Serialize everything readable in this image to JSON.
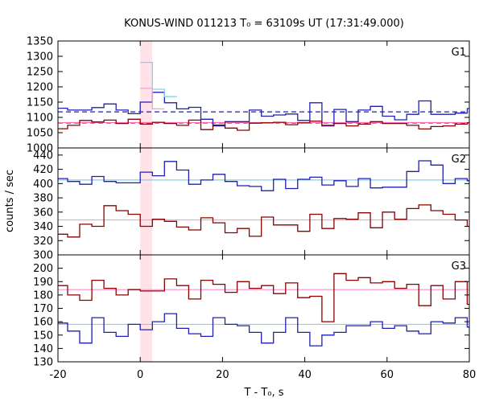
{
  "chart_data": {
    "type": "line",
    "title": "KONUS-WIND 011213 T₀ = 63109s UT (17:31:49.000)",
    "xlabel": "T - T₀, s",
    "ylabel": "counts / sec",
    "xlim": [
      -20,
      80
    ],
    "x_ticks": [
      "-20",
      "0",
      "20",
      "40",
      "60",
      "80"
    ],
    "x_tick_values": [
      -20,
      0,
      20,
      40,
      60,
      80
    ],
    "highlight_interval": [
      0,
      2.9
    ],
    "bin_width": 2.944,
    "bin_start": -20.6,
    "panels": [
      {
        "label": "G1",
        "ylim": [
          1000,
          1350
        ],
        "y_ticks": [
          1000,
          1050,
          1100,
          1150,
          1200,
          1250,
          1300,
          1350
        ],
        "series": [
          {
            "color": "#1f1fb4",
            "style": "step",
            "values": [
              1130,
              1124,
              1124,
              1132,
              1144,
              1124,
              1112,
              1150,
              1182,
              1148,
              1128,
              1133,
              1094,
              1072,
              1086,
              1086,
              1124,
              1104,
              1108,
              1111,
              1090,
              1148,
              1072,
              1126,
              1086,
              1124,
              1136,
              1104,
              1092,
              1110,
              1154,
              1110,
              1110,
              1114,
              1129,
              1170,
              1162,
              1152,
              1148,
              1134
            ]
          },
          {
            "color": "#8b0000",
            "style": "step",
            "values": [
              1063,
              1074,
              1090,
              1085,
              1091,
              1080,
              1094,
              1078,
              1084,
              1080,
              1074,
              1091,
              1060,
              1075,
              1065,
              1058,
              1081,
              1082,
              1084,
              1076,
              1082,
              1088,
              1074,
              1080,
              1072,
              1078,
              1086,
              1080,
              1080,
              1074,
              1062,
              1070,
              1072,
              1078,
              1082,
              1091,
              1085,
              1072,
              1078,
              1084
            ]
          },
          {
            "color": "#87ceeb",
            "style": "step",
            "values": [
              null,
              null,
              null,
              null,
              null,
              null,
              null,
              1280,
              1192,
              1168,
              null,
              null,
              null,
              null,
              null,
              null,
              null,
              null,
              null,
              null,
              null,
              null,
              null,
              null,
              null,
              null,
              null,
              null,
              null,
              null,
              null,
              null,
              null,
              null,
              null,
              null,
              null,
              null,
              null,
              null
            ]
          },
          {
            "color": "#ff9ccf",
            "style": "step",
            "values": [
              null,
              null,
              null,
              null,
              null,
              null,
              null,
              1195,
              1128,
              null,
              null,
              null,
              null,
              null,
              null,
              null,
              null,
              null,
              null,
              null,
              null,
              null,
              null,
              null,
              null,
              null,
              null,
              null,
              null,
              null,
              null,
              null,
              null,
              null,
              null,
              null,
              null,
              null,
              null,
              null
            ]
          }
        ],
        "hlines": [
          {
            "value": 1118,
            "color": "#1f1fb4",
            "dashed": true
          },
          {
            "value": 1082,
            "color": "#8b0000",
            "dashed": true
          },
          {
            "value": 1083,
            "color": "#ff69b4",
            "dashed": false
          }
        ]
      },
      {
        "label": "G2",
        "ylim": [
          300,
          450
        ],
        "y_ticks": [
          300,
          320,
          340,
          360,
          380,
          400,
          420,
          440
        ],
        "series": [
          {
            "color": "#1f1fb4",
            "style": "step",
            "values": [
              407,
              403,
              399,
              410,
              403,
              401,
              401,
              416,
              411,
              431,
              419,
              399,
              405,
              413,
              403,
              397,
              396,
              390,
              406,
              393,
              406,
              409,
              398,
              404,
              396,
              407,
              394,
              395,
              395,
              417,
              432,
              426,
              400,
              407,
              404,
              405,
              401,
              403,
              397,
              403
            ]
          },
          {
            "color": "#8b0000",
            "style": "step",
            "values": [
              329,
              325,
              343,
              340,
              369,
              362,
              357,
              340,
              350,
              347,
              339,
              335,
              352,
              345,
              331,
              337,
              326,
              353,
              342,
              342,
              333,
              357,
              337,
              351,
              350,
              359,
              338,
              360,
              350,
              365,
              370,
              362,
              357,
              349,
              340,
              367,
              345,
              346,
              340,
              347
            ]
          }
        ],
        "hlines": [
          {
            "value": 405,
            "color": "#87ceeb",
            "dashed": false
          },
          {
            "value": 349,
            "color": "#ff9ccf",
            "dashed": false
          }
        ]
      },
      {
        "label": "G3",
        "ylim": [
          130,
          210
        ],
        "y_ticks": [
          130,
          140,
          150,
          160,
          170,
          180,
          190,
          200
        ],
        "series": [
          {
            "color": "#8b0000",
            "style": "step",
            "values": [
              187,
              180,
              176,
              191,
              185,
              180,
              184,
              183,
              183,
              192,
              187,
              177,
              191,
              188,
              182,
              190,
              185,
              187,
              181,
              189,
              178,
              179,
              160,
              196,
              191,
              193,
              189,
              190,
              185,
              188,
              172,
              187,
              177,
              190,
              173,
              185,
              176,
              191,
              178,
              186
            ]
          },
          {
            "color": "#1f1fb4",
            "style": "step",
            "values": [
              159,
              153,
              144,
              163,
              152,
              149,
              158,
              154,
              160,
              166,
              155,
              151,
              149,
              163,
              158,
              157,
              152,
              144,
              152,
              163,
              152,
              142,
              150,
              152,
              157,
              157,
              160,
              155,
              157,
              153,
              151,
              160,
              159,
              163,
              156,
              160,
              161,
              153,
              158,
              159
            ]
          }
        ],
        "hlines": [
          {
            "value": 184,
            "color": "#ff9ccf",
            "dashed": false
          },
          {
            "value": 158,
            "color": "#87ceeb",
            "dashed": false
          }
        ]
      }
    ]
  }
}
